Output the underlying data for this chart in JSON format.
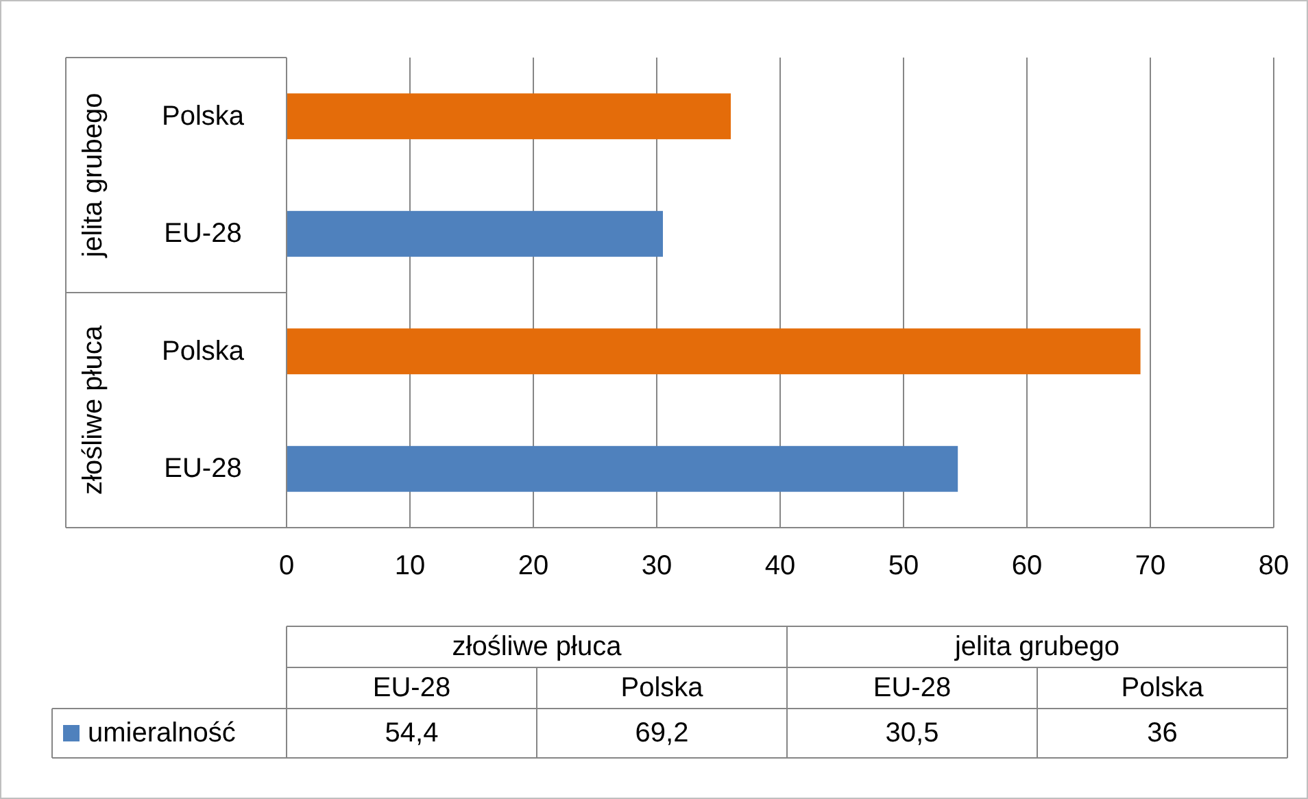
{
  "chart_data": {
    "type": "bar",
    "orientation": "horizontal",
    "categories": [
      "Polska",
      "EU-28",
      "Polska",
      "EU-28"
    ],
    "series": [
      {
        "name": "umieralność",
        "values": [
          36,
          30.5,
          69.2,
          54.4
        ]
      }
    ],
    "colors": [
      "#e46c0a",
      "#4f81bd",
      "#e46c0a",
      "#4f81bd"
    ],
    "value_labels": [
      "36",
      "30,5",
      "69,2",
      "54,4"
    ],
    "annotations": [
      "jelita grubego",
      "złośliwe płuca"
    ],
    "xlim": [
      0,
      80
    ],
    "xticks": [
      0,
      10,
      20,
      30,
      40,
      50,
      60,
      70,
      80
    ],
    "grid": "x",
    "legend": "bottom"
  }
}
